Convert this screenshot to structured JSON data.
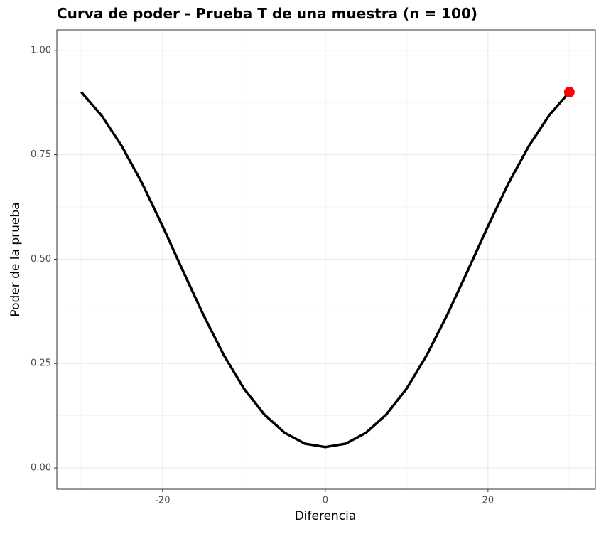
{
  "chart_data": {
    "type": "line",
    "title": "Curva de poder - Prueba T de una muestra (n =  100)",
    "x_label": "Diferencia",
    "y_label": "Poder de la prueba",
    "x": [
      -30,
      -27.5,
      -25,
      -22.5,
      -20,
      -17.5,
      -15,
      -12.5,
      -10,
      -7.5,
      -5,
      -2.5,
      0,
      2.5,
      5,
      7.5,
      10,
      12.5,
      15,
      17.5,
      20,
      22.5,
      25,
      27.5,
      30
    ],
    "series": [
      {
        "color": "#000000",
        "values": [
          0.9,
          0.844,
          0.77,
          0.681,
          0.579,
          0.472,
          0.367,
          0.271,
          0.19,
          0.128,
          0.084,
          0.058,
          0.05,
          0.058,
          0.084,
          0.128,
          0.19,
          0.271,
          0.367,
          0.472,
          0.579,
          0.681,
          0.77,
          0.844,
          0.9
        ]
      }
    ],
    "highlight": {
      "x": 30,
      "y": 0.9,
      "color": "#ff0000"
    },
    "xlim": [
      -33,
      33.2
    ],
    "ylim": [
      -0.051,
      1.049
    ],
    "xticks": [
      -20,
      0,
      20
    ],
    "yticks": [
      {
        "value": 0,
        "label": "0.00"
      },
      {
        "value": 0.25,
        "label": "0.25"
      },
      {
        "value": 0.5,
        "label": "0.50"
      },
      {
        "value": 0.75,
        "label": "0.75"
      },
      {
        "value": 1,
        "label": "1.00"
      }
    ],
    "grid": true
  }
}
